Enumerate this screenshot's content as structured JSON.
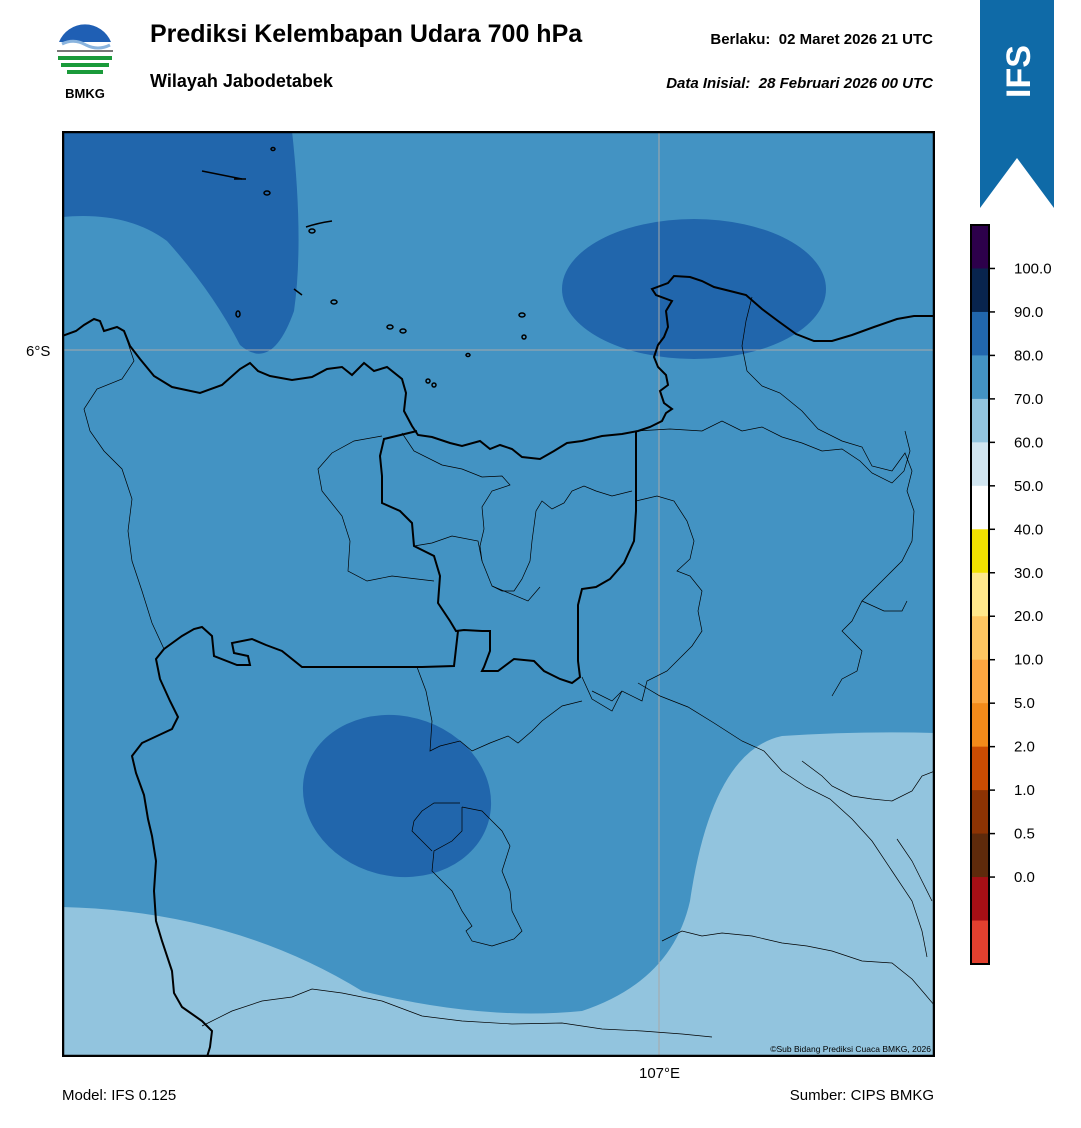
{
  "header": {
    "title": "Prediksi Kelembapan Udara 700 hPa",
    "subtitle": "Wilayah Jabodetabek",
    "valid_label": "Berlaku:",
    "valid_time": "02 Maret 2026 21 UTC",
    "init_label": "Data Inisial:",
    "init_time": "28 Februari 2026 00 UTC"
  },
  "logo": {
    "text": "BMKG"
  },
  "ribbon": {
    "text": "IFS",
    "color": "#0f6aa7"
  },
  "map": {
    "lat_label": "6°S",
    "lon_label": "107°E",
    "credit": "©Sub Bidang Prediksi Cuaca BMKG, 2026",
    "fill_colors": {
      "60_70": "#92c4de",
      "70_80": "#4393c3",
      "80_90": "#2166ac"
    }
  },
  "footer": {
    "model": "Model: IFS 0.125",
    "source": "Sumber: CIPS BMKG"
  },
  "colorbar": {
    "ticks": [
      "100.0",
      "90.0",
      "80.0",
      "70.0",
      "60.0",
      "50.0",
      "40.0",
      "30.0",
      "20.0",
      "10.0",
      "5.0",
      "2.0",
      "1.0",
      "0.5",
      "0.0"
    ],
    "bands": [
      "#2d004b",
      "#08244e",
      "#2166ac",
      "#4393c3",
      "#92c4de",
      "#d1e5f0",
      "#ffffff",
      "#f2e000",
      "#ffe78b",
      "#fec661",
      "#fda640",
      "#f38a1a",
      "#cb4c02",
      "#8d3303",
      "#5e2a0b",
      "#a50f15",
      "#e2402f"
    ]
  }
}
